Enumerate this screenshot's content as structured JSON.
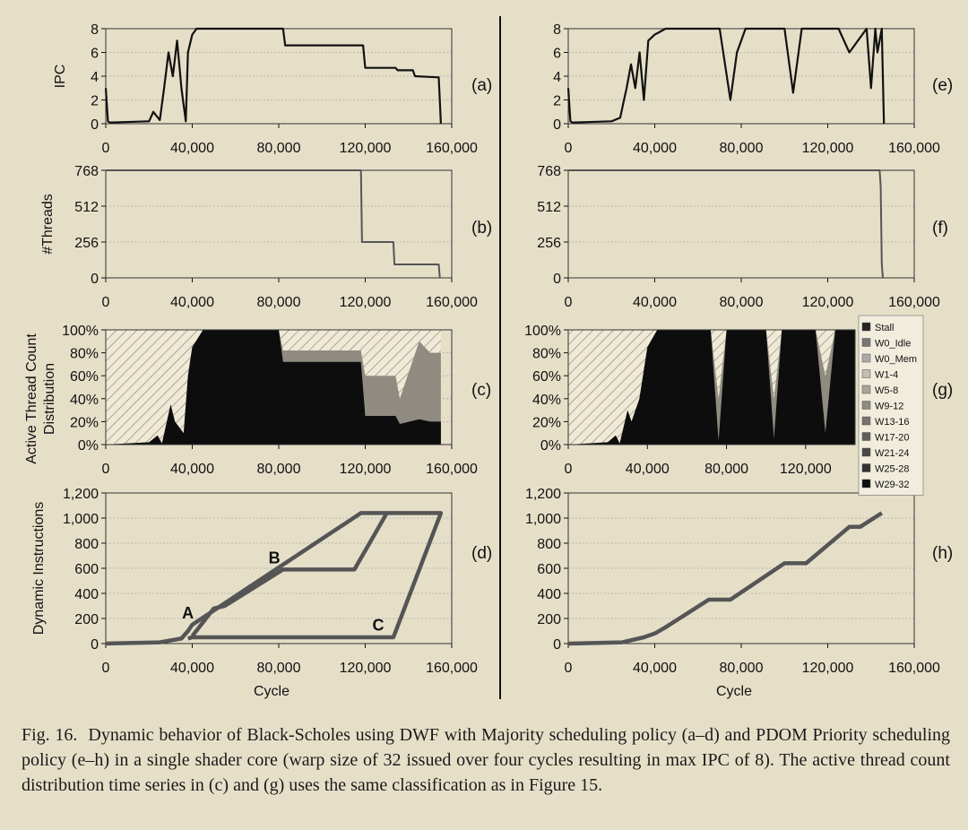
{
  "caption": {
    "label": "Fig. 16.",
    "text": "Dynamic behavior of Black-Scholes using DWF with Majority scheduling policy (a–d) and PDOM Priority scheduling policy (e–h) in a single shader core (warp size of 32 issued over four cycles resulting in max IPC of 8). The active thread count distribution time series in (c) and (g) uses the same classification as in Figure 15."
  },
  "colors": {
    "background": "#e6dfc8",
    "ipc_line": "#111111",
    "threads_line": "#555555",
    "instr_line": "#555555",
    "grid": "#aaaaaa"
  },
  "chart_data": [
    {
      "panel": "(a)",
      "type": "line",
      "xlabel": "",
      "ylabel": "IPC",
      "xlim": [
        0,
        160000
      ],
      "ylim": [
        0,
        8
      ],
      "xticks": [
        "0",
        "40,000",
        "80,000",
        "120,000",
        "160,000"
      ],
      "yticks": [
        "0",
        "2",
        "4",
        "6",
        "8"
      ],
      "x": [
        0,
        1000,
        2000,
        20000,
        22000,
        25000,
        27000,
        29000,
        31000,
        33000,
        35000,
        37000,
        38000,
        40000,
        42000,
        45000,
        82000,
        83000,
        119000,
        120000,
        134000,
        135000,
        142000,
        143000,
        154000,
        155000
      ],
      "y": [
        3,
        0.2,
        0.1,
        0.2,
        1,
        0.3,
        3,
        6,
        4,
        7,
        3,
        0.2,
        6,
        7.5,
        8,
        8,
        8,
        6.6,
        6.6,
        4.7,
        4.7,
        4.5,
        4.5,
        4.0,
        3.9,
        0
      ]
    },
    {
      "panel": "(b)",
      "type": "line",
      "xlabel": "",
      "ylabel": "#Threads",
      "xlim": [
        0,
        160000
      ],
      "ylim": [
        0,
        768
      ],
      "xticks": [
        "0",
        "40,000",
        "80,000",
        "120,000",
        "160,000"
      ],
      "yticks": [
        "0",
        "256",
        "512",
        "768"
      ],
      "x": [
        0,
        118000,
        118500,
        133000,
        133500,
        154000,
        154500
      ],
      "y": [
        768,
        768,
        256,
        256,
        96,
        96,
        0
      ]
    },
    {
      "panel": "(c)",
      "type": "area",
      "xlabel": "",
      "ylabel": "Active Thread Count Distribution",
      "xlim": [
        0,
        160000
      ],
      "ylim": [
        0,
        100
      ],
      "xticks": [
        "0",
        "40,000",
        "80,000",
        "120,000",
        "160,000"
      ],
      "yticks": [
        "0%",
        "20%",
        "40%",
        "60%",
        "80%",
        "100%"
      ],
      "x": [
        0,
        20000,
        24000,
        26000,
        30000,
        32000,
        36000,
        38000,
        40000,
        45000,
        80000,
        82000,
        118000,
        120000,
        134000,
        136000,
        145000,
        150000,
        155000
      ],
      "w29_32": [
        0,
        2,
        8,
        1,
        35,
        20,
        10,
        60,
        85,
        100,
        100,
        72,
        72,
        25,
        25,
        18,
        22,
        20,
        20
      ],
      "upper_band": [
        0,
        2,
        8,
        1,
        35,
        20,
        10,
        60,
        85,
        100,
        100,
        82,
        82,
        60,
        60,
        40,
        90,
        80,
        80
      ],
      "wo_idle_top": [
        100,
        100,
        100,
        100,
        100,
        100,
        100,
        100,
        100,
        100,
        100,
        100,
        100,
        100,
        100,
        100,
        100,
        100,
        100
      ]
    },
    {
      "panel": "(d)",
      "type": "line",
      "xlabel": "Cycle",
      "ylabel": "Dynamic Instructions",
      "xlim": [
        0,
        160000
      ],
      "ylim": [
        0,
        1200
      ],
      "xticks": [
        "0",
        "40,000",
        "80,000",
        "120,000",
        "160,000"
      ],
      "yticks": [
        "0",
        "200",
        "400",
        "600",
        "800",
        "1,000",
        "1,200"
      ],
      "paths": [
        {
          "x": [
            0,
            25000,
            35000,
            38000,
            40000,
            118000,
            155000,
            133000,
            40000,
            38000
          ],
          "y": [
            0,
            10,
            40,
            100,
            150,
            1040,
            1040,
            50,
            50,
            40
          ]
        },
        {
          "x": [
            40000,
            50000,
            55000,
            82000,
            115000,
            130000
          ],
          "y": [
            60,
            280,
            300,
            590,
            590,
            1040
          ]
        }
      ],
      "annotations": [
        {
          "text": "A",
          "x": 38000,
          "y": 200
        },
        {
          "text": "B",
          "x": 78000,
          "y": 640
        },
        {
          "text": "C",
          "x": 126000,
          "y": 105
        }
      ]
    },
    {
      "panel": "(e)",
      "type": "line",
      "xlabel": "",
      "ylabel": "",
      "xlim": [
        0,
        160000
      ],
      "ylim": [
        0,
        8
      ],
      "xticks": [
        "0",
        "40,000",
        "80,000",
        "120,000",
        "160,000"
      ],
      "yticks": [
        "0",
        "2",
        "4",
        "6",
        "8"
      ],
      "x": [
        0,
        1000,
        2000,
        20000,
        24000,
        27000,
        29000,
        31000,
        33000,
        35000,
        37000,
        40000,
        45000,
        70000,
        75000,
        78000,
        82000,
        100000,
        104000,
        108000,
        125000,
        130000,
        138000,
        140000,
        142000,
        143000,
        145000,
        146000
      ],
      "y": [
        3,
        0.2,
        0.1,
        0.2,
        0.5,
        3,
        5,
        3,
        6,
        2,
        7,
        7.5,
        8,
        8,
        2,
        6,
        8,
        8,
        2.6,
        8,
        8,
        6,
        8,
        3,
        8,
        6,
        8,
        0
      ]
    },
    {
      "panel": "(f)",
      "type": "line",
      "xlabel": "",
      "ylabel": "",
      "xlim": [
        0,
        160000
      ],
      "ylim": [
        0,
        768
      ],
      "xticks": [
        "0",
        "40,000",
        "80,000",
        "120,000",
        "160,000"
      ],
      "yticks": [
        "0",
        "256",
        "512",
        "768"
      ],
      "x": [
        0,
        144000,
        144500,
        145000,
        145500
      ],
      "y": [
        768,
        768,
        650,
        100,
        0
      ]
    },
    {
      "panel": "(g)",
      "type": "area",
      "xlabel": "",
      "ylabel": "",
      "xlim": [
        0,
        160000
      ],
      "ylim": [
        0,
        100
      ],
      "xticks": [
        "0",
        "40,000",
        "80,000",
        "120,000"
      ],
      "yticks": [
        "0%",
        "20%",
        "40%",
        "60%",
        "80%",
        "100%"
      ],
      "x": [
        0,
        20000,
        24000,
        26000,
        30000,
        32000,
        36000,
        40000,
        45000,
        72000,
        76000,
        80000,
        100000,
        104000,
        108000,
        125000,
        130000,
        135000,
        145000
      ],
      "w29_32": [
        0,
        2,
        8,
        1,
        30,
        20,
        40,
        85,
        100,
        100,
        3,
        100,
        100,
        5,
        100,
        100,
        10,
        100,
        100
      ],
      "upper_band": [
        0,
        2,
        8,
        1,
        30,
        20,
        40,
        85,
        100,
        100,
        40,
        100,
        100,
        40,
        100,
        100,
        60,
        100,
        100
      ],
      "wo_idle_top": [
        100,
        100,
        100,
        100,
        100,
        100,
        100,
        100,
        100,
        100,
        100,
        100,
        100,
        100,
        100,
        100,
        100,
        100,
        100
      ],
      "legend": [
        "Stall",
        "W0_Idle",
        "W0_Mem",
        "W1-4",
        "W5-8",
        "W9-12",
        "W13-16",
        "W17-20",
        "W21-24",
        "W25-28",
        "W29-32"
      ],
      "legend_colors": [
        "#222222",
        "#777777",
        "#aaaaaa",
        "#c2bdb0",
        "#a9a59a",
        "#8e8b82",
        "#76736c",
        "#605e58",
        "#4a4844",
        "#333230",
        "#0d0d0d"
      ]
    },
    {
      "panel": "(h)",
      "type": "line",
      "xlabel": "Cycle",
      "ylabel": "",
      "xlim": [
        0,
        160000
      ],
      "ylim": [
        0,
        1200
      ],
      "xticks": [
        "0",
        "40,000",
        "80,000",
        "120,000",
        "160,000"
      ],
      "yticks": [
        "0",
        "200",
        "400",
        "600",
        "800",
        "1,000",
        "1,200"
      ],
      "x": [
        0,
        25000,
        35000,
        40000,
        45000,
        65000,
        75000,
        100000,
        110000,
        130000,
        135000,
        145000
      ],
      "y": [
        0,
        10,
        50,
        80,
        130,
        350,
        350,
        640,
        640,
        930,
        930,
        1040
      ]
    }
  ]
}
